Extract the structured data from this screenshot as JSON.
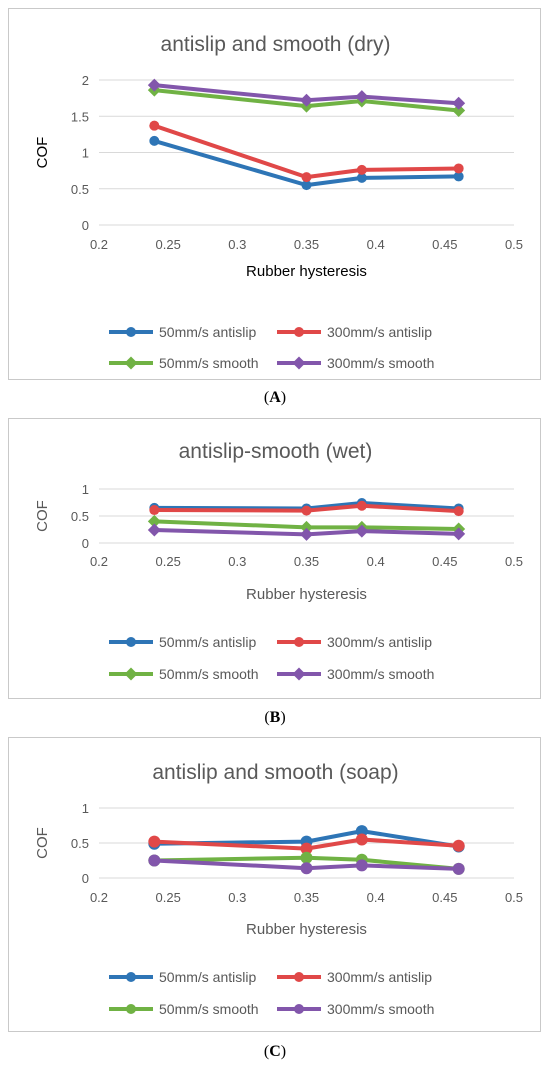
{
  "colors": {
    "blue": "#2e75b6",
    "red": "#e04848",
    "green": "#70b244",
    "purple": "#8256ab",
    "grid": "#d9d9d9",
    "text": "#595959"
  },
  "captions": [
    "A",
    "B",
    "C"
  ],
  "chart_data": [
    {
      "type": "line",
      "title": "antislip and smooth (dry)",
      "xlabel": "Rubber hysteresis",
      "ylabel": "COF",
      "axis_label_color": "#000000",
      "xlim": [
        0.2,
        0.5
      ],
      "xticks": [
        0.2,
        0.25,
        0.3,
        0.35,
        0.4,
        0.45,
        0.5
      ],
      "xtick_labels": [
        "0.2",
        "0.25",
        "0.3",
        "0.35",
        "0.4",
        "0.45",
        "0.5"
      ],
      "ylim": [
        0,
        2
      ],
      "yticks": [
        0,
        0.5,
        1,
        1.5,
        2
      ],
      "ytick_labels": [
        "0",
        "0.5",
        "1",
        "1.5",
        "2"
      ],
      "grid": true,
      "legend": "bottom",
      "x": [
        0.24,
        0.35,
        0.39,
        0.46
      ],
      "series": [
        {
          "name": "50mm/s antislip",
          "color": "#2e75b6",
          "marker": "circle",
          "values": [
            1.16,
            0.55,
            0.65,
            0.67
          ]
        },
        {
          "name": "300mm/s antislip",
          "color": "#e04848",
          "marker": "circle",
          "values": [
            1.37,
            0.66,
            0.76,
            0.78
          ]
        },
        {
          "name": "50mm/s smooth",
          "color": "#70b244",
          "marker": "diamond",
          "values": [
            1.86,
            1.64,
            1.71,
            1.58
          ]
        },
        {
          "name": "300mm/s smooth",
          "color": "#8256ab",
          "marker": "diamond",
          "values": [
            1.93,
            1.72,
            1.77,
            1.68
          ]
        }
      ]
    },
    {
      "type": "line",
      "title": "antislip-smooth (wet)",
      "xlabel": "Rubber hysteresis",
      "ylabel": "COF",
      "axis_label_color": "#595959",
      "xlim": [
        0.2,
        0.5
      ],
      "xticks": [
        0.2,
        0.25,
        0.3,
        0.35,
        0.4,
        0.45,
        0.5
      ],
      "xtick_labels": [
        "0.2",
        "0.25",
        "0.3",
        "0.35",
        "0.4",
        "0.45",
        "0.5"
      ],
      "ylim": [
        0,
        1
      ],
      "yticks": [
        0,
        0.5,
        1
      ],
      "ytick_labels": [
        "0",
        "0.5",
        "1"
      ],
      "grid": true,
      "legend": "bottom",
      "x": [
        0.24,
        0.35,
        0.39,
        0.46
      ],
      "series": [
        {
          "name": "50mm/s antislip",
          "color": "#2e75b6",
          "marker": "circle",
          "values": [
            0.65,
            0.64,
            0.74,
            0.64
          ]
        },
        {
          "name": "300mm/s antislip",
          "color": "#e04848",
          "marker": "circle",
          "values": [
            0.61,
            0.6,
            0.69,
            0.59
          ]
        },
        {
          "name": "50mm/s smooth",
          "color": "#70b244",
          "marker": "diamond",
          "values": [
            0.4,
            0.29,
            0.29,
            0.26
          ]
        },
        {
          "name": "300mm/s smooth",
          "color": "#8256ab",
          "marker": "diamond",
          "values": [
            0.24,
            0.16,
            0.22,
            0.17
          ]
        }
      ]
    },
    {
      "type": "line",
      "title": "antislip and smooth (soap)",
      "xlabel": "Rubber hysteresis",
      "ylabel": "COF",
      "axis_label_color": "#595959",
      "xlim": [
        0.2,
        0.5
      ],
      "xticks": [
        0.2,
        0.25,
        0.3,
        0.35,
        0.4,
        0.45,
        0.5
      ],
      "xtick_labels": [
        "0.2",
        "0.25",
        "0.3",
        "0.35",
        "0.4",
        "0.45",
        "0.5"
      ],
      "ylim": [
        0,
        1
      ],
      "yticks": [
        0,
        0.5,
        1
      ],
      "ytick_labels": [
        "0",
        "0.5",
        "1"
      ],
      "grid": true,
      "legend": "bottom",
      "x": [
        0.24,
        0.35,
        0.39,
        0.46
      ],
      "series": [
        {
          "name": "50mm/s antislip",
          "color": "#2e75b6",
          "marker": "circle",
          "values": [
            0.49,
            0.52,
            0.67,
            0.45
          ]
        },
        {
          "name": "300mm/s antislip",
          "color": "#e04848",
          "marker": "circle",
          "values": [
            0.52,
            0.42,
            0.55,
            0.46
          ]
        },
        {
          "name": "50mm/s smooth",
          "color": "#70b244",
          "marker": "circle",
          "values": [
            0.25,
            0.29,
            0.26,
            0.13
          ]
        },
        {
          "name": "300mm/s smooth",
          "color": "#8256ab",
          "marker": "circle",
          "values": [
            0.25,
            0.14,
            0.18,
            0.13
          ]
        }
      ]
    }
  ]
}
